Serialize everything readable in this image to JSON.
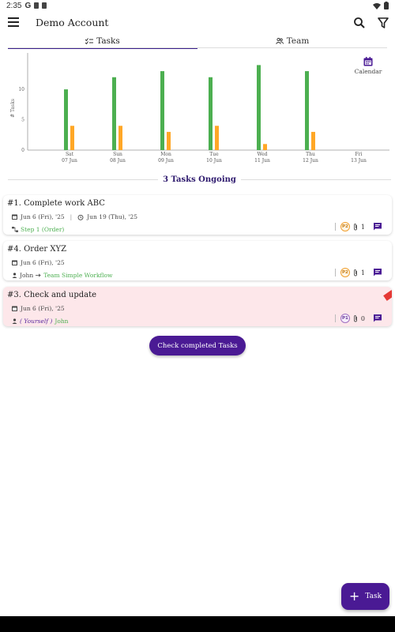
{
  "status_bar": {
    "time": "2:35",
    "google_letter": "G"
  },
  "app_bar": {
    "title": "Demo Account"
  },
  "tabs": [
    {
      "label": "Tasks",
      "icon": "checklist-icon",
      "active": true
    },
    {
      "label": "Team",
      "icon": "people-icon",
      "active": false
    }
  ],
  "calendar": {
    "label": "Calendar"
  },
  "chart_data": {
    "type": "bar",
    "ylabel": "# Tasks",
    "yticks": [
      0,
      5,
      10
    ],
    "categories": [
      {
        "day": "Sat",
        "date": "07 Jun"
      },
      {
        "day": "Sun",
        "date": "08 Jun"
      },
      {
        "day": "Mon",
        "date": "09 Jun"
      },
      {
        "day": "Tue",
        "date": "10 Jun"
      },
      {
        "day": "Wed",
        "date": "11 Jun"
      },
      {
        "day": "Thu",
        "date": "12 Jun"
      },
      {
        "day": "Fri",
        "date": "13 Jun"
      }
    ],
    "series": [
      {
        "color": "#4caf50",
        "values": [
          10,
          12,
          13,
          12,
          14,
          13,
          0
        ]
      },
      {
        "color": "#ffa726",
        "values": [
          4,
          4,
          3,
          4,
          1,
          3,
          0
        ]
      }
    ],
    "ylim": [
      0,
      16
    ],
    "grid": false
  },
  "ongoing": {
    "title": "3 Tasks Ongoing"
  },
  "tasks": [
    {
      "title": "#1. Complete work ABC",
      "start": "Jun 6 (Fri), '25",
      "due": "Jun 19 (Thu), '25",
      "step": "Step 1 (Order)",
      "priority": "P2",
      "attachments": "1"
    },
    {
      "title": "#4. Order XYZ",
      "start": "Jun 6 (Fri), '25",
      "assignee_from": "John",
      "assignee_to": "Team Simple Workflow",
      "priority": "P2",
      "attachments": "1"
    },
    {
      "title": "#3. Check and update",
      "start": "Jun 6 (Fri), '25",
      "assignee_note": "( Yourself )",
      "assignee_name": "John",
      "priority": "P1",
      "attachments": "0"
    }
  ],
  "check_completed_label": "Check completed Tasks",
  "fab": {
    "label": "Task"
  },
  "colors": {
    "primary": "#4a1a94",
    "green": "#4caf50",
    "orange": "#ffa726",
    "overdue_card": "#fde7ea",
    "badge": "#e53935"
  }
}
